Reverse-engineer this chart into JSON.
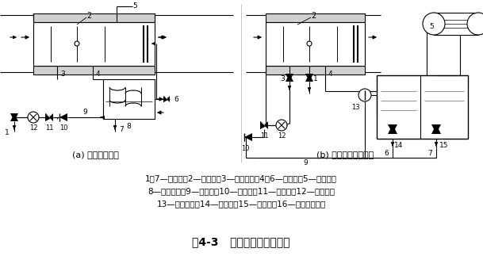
{
  "title": "图4-3   自流回水式喷水系统",
  "subtitle_a": "(a) 利用蒸发水箱",
  "subtitle_b": "(b) 利用壳管式蒸发器",
  "legend_line1": "1、7—泄水管；2—喷水室；3—循环水管；4、6—溢水管；5—补水管；",
  "legend_line2": "8—蒸发水箱；9—冷水管；10—止回阀；11—三通阀；12—喷水泵；",
  "legend_line3": "13—冷媒水泵；14—回水箱；15—冷水箱；16—壳管式蒸发器",
  "bg_color": "#ffffff"
}
